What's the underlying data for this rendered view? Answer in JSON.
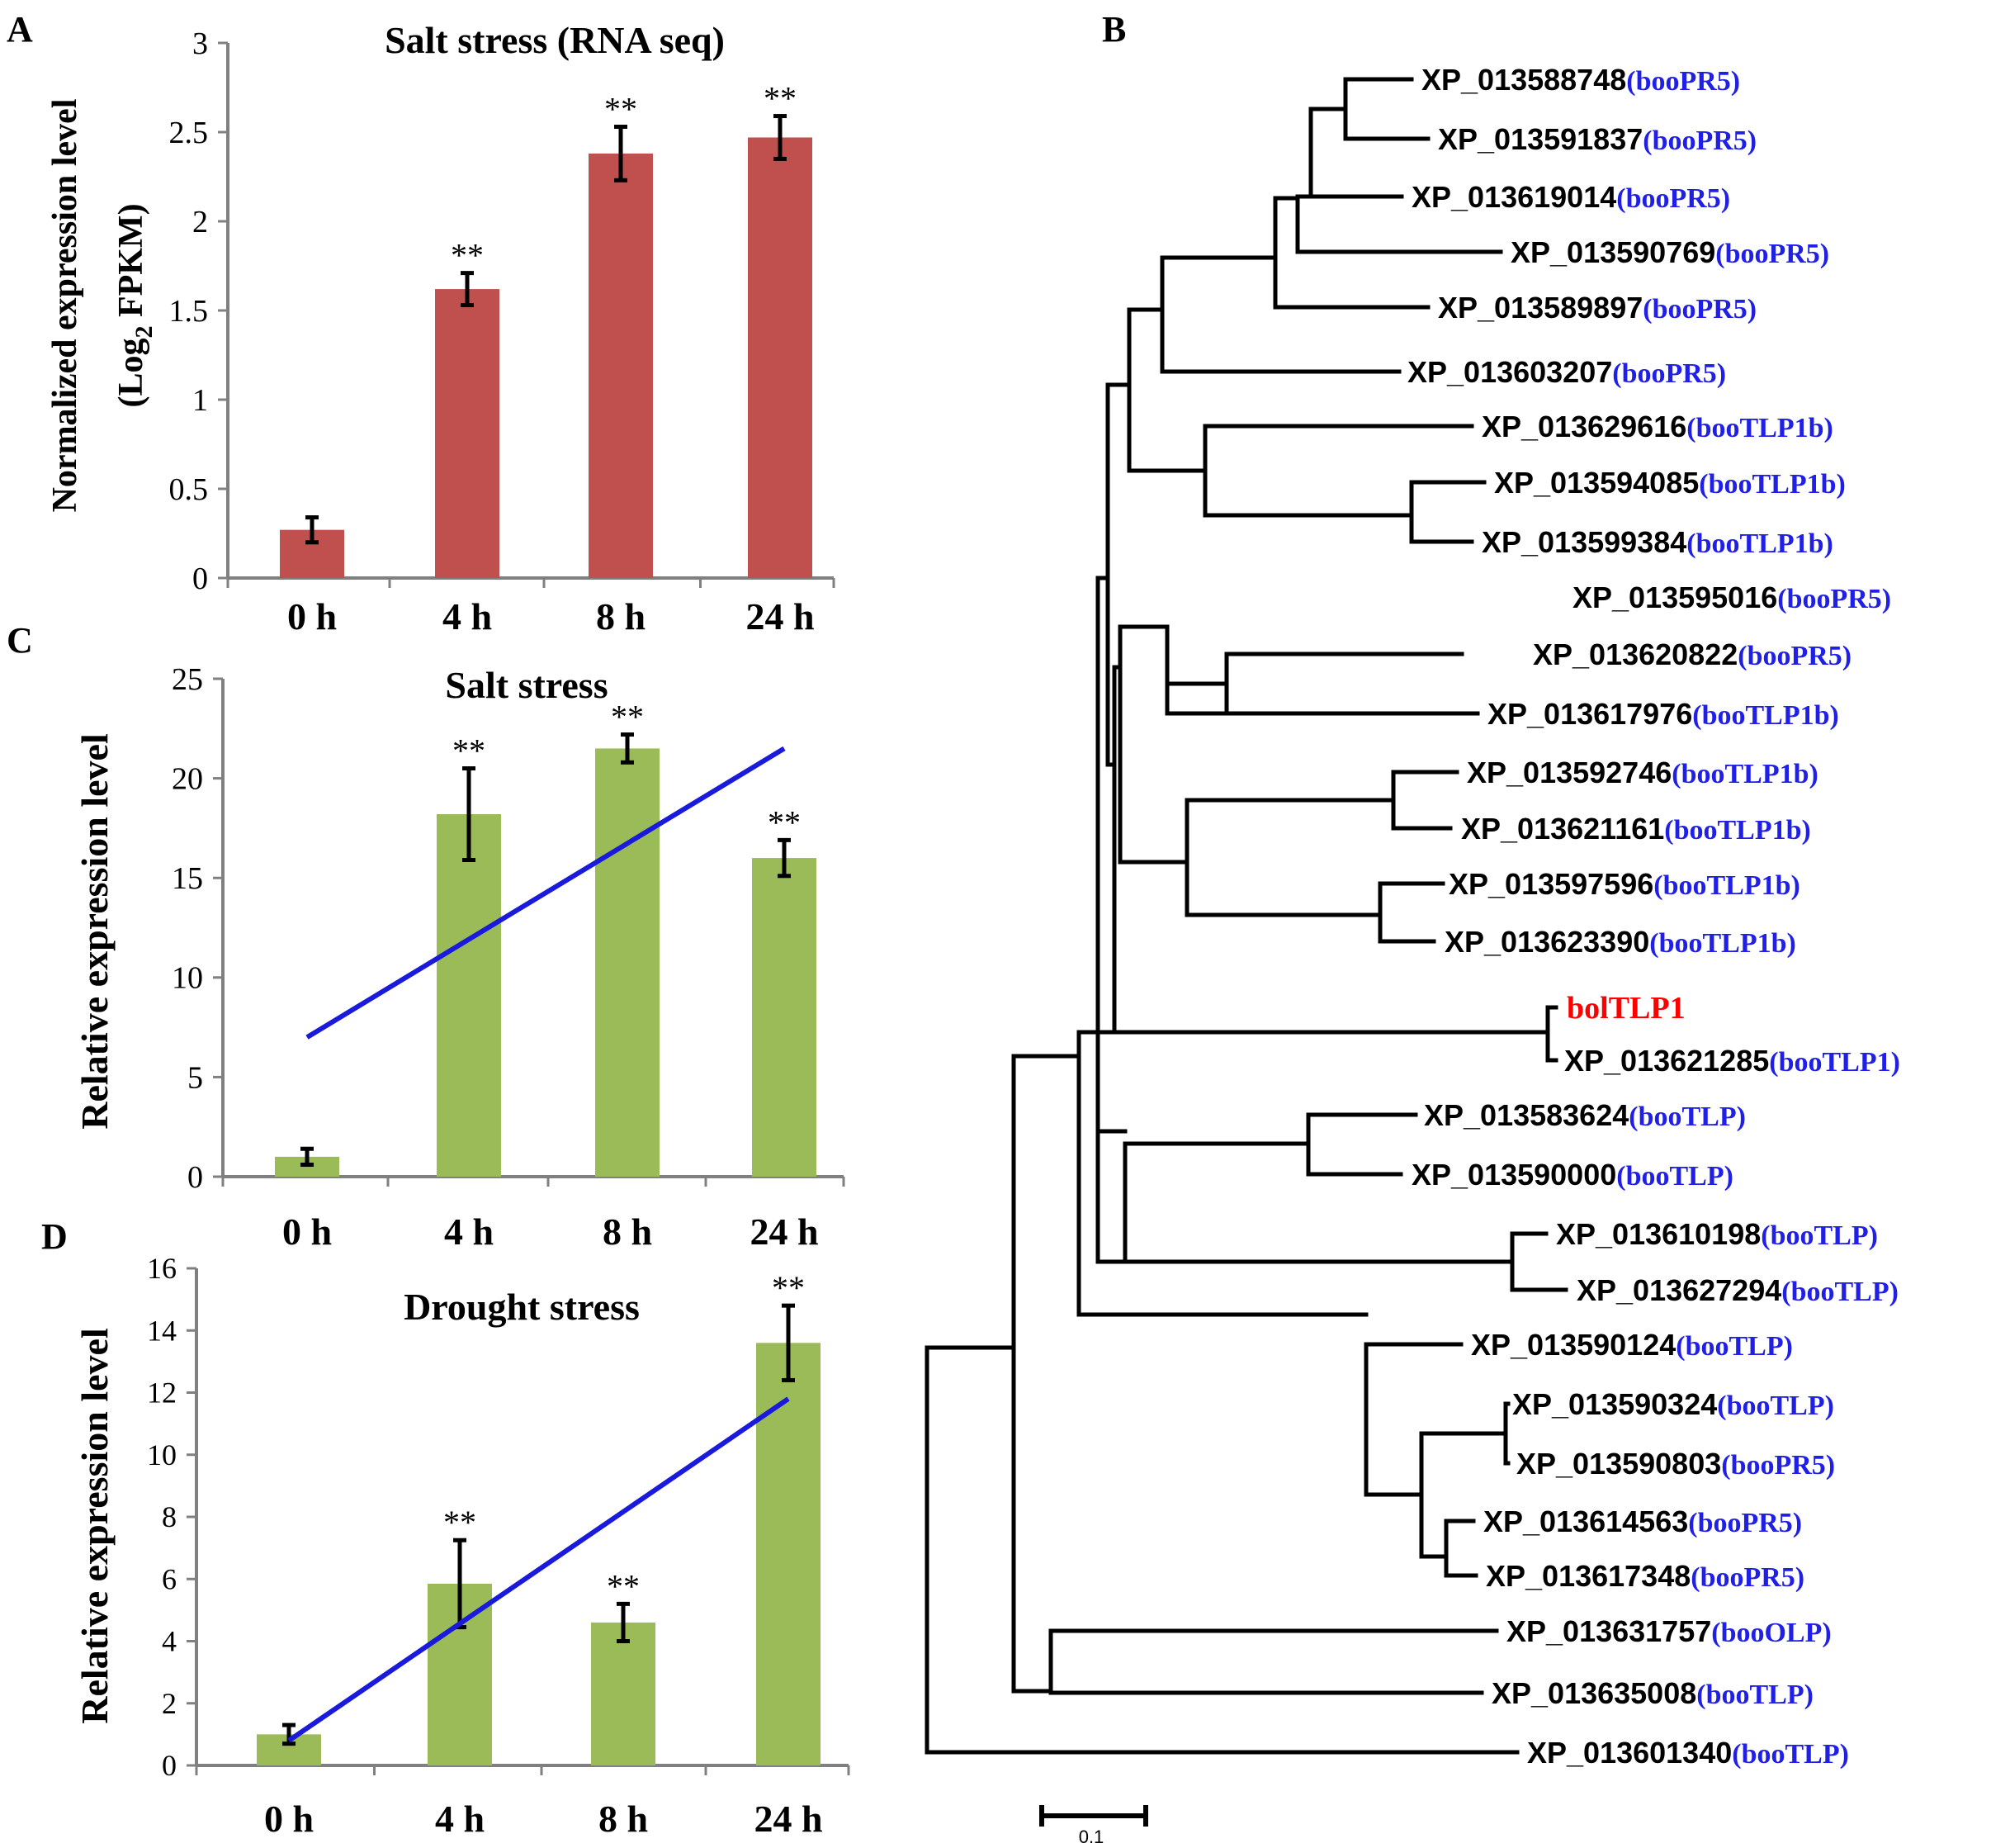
{
  "colors": {
    "bar_red": "#c0504d",
    "bar_green": "#9bbb59",
    "trend_blue": "#1a1adc",
    "axis": "#808080",
    "text": "#000000",
    "tag_blue": "#1f1fe6",
    "highlight_red": "#ff0000"
  },
  "chart_data": [
    {
      "panel": "A",
      "type": "bar",
      "title": "Salt stress (RNA seq)",
      "ylabel_line1": "Normalized expression level",
      "ylabel_line2_pre": "(Log",
      "ylabel_line2_sub": "2",
      "ylabel_line2_post": " FPKM)",
      "categories": [
        "0 h",
        "4 h",
        "8 h",
        "24 h"
      ],
      "values": [
        0.27,
        1.62,
        2.38,
        2.47
      ],
      "errors": [
        0.07,
        0.09,
        0.15,
        0.12
      ],
      "significance": [
        "",
        "**",
        "**",
        "**"
      ],
      "ylim": [
        0,
        3
      ],
      "yticks": [
        0,
        0.5,
        1,
        1.5,
        2,
        2.5,
        3
      ],
      "ytick_labels": [
        "0",
        "0.5",
        "1",
        "1.5",
        "2",
        "2.5",
        "3"
      ],
      "trendline": false
    },
    {
      "panel": "C",
      "type": "bar",
      "title": "Salt stress",
      "ylabel": "Relative expression level",
      "categories": [
        "0 h",
        "4 h",
        "8 h",
        "24 h"
      ],
      "values": [
        1.0,
        18.2,
        21.5,
        16.0
      ],
      "errors": [
        0.4,
        2.3,
        0.7,
        0.9
      ],
      "significance": [
        "",
        "**",
        "**",
        "**"
      ],
      "ylim": [
        0,
        25
      ],
      "yticks": [
        0,
        5,
        10,
        15,
        20,
        25
      ],
      "ytick_labels": [
        "0",
        "5",
        "10",
        "15",
        "20",
        "25"
      ],
      "trendline": true,
      "trend_from": 7.0,
      "trend_to": 21.5
    },
    {
      "panel": "D",
      "type": "bar",
      "title": "Drought stress",
      "ylabel": "Relative expression level",
      "categories": [
        "0 h",
        "4 h",
        "8 h",
        "24 h"
      ],
      "values": [
        1.0,
        5.85,
        4.6,
        13.6
      ],
      "errors": [
        0.3,
        1.4,
        0.6,
        1.2
      ],
      "significance": [
        "",
        "**",
        "**",
        "**"
      ],
      "ylim": [
        0,
        16
      ],
      "yticks": [
        0,
        2,
        4,
        6,
        8,
        10,
        12,
        14,
        16
      ],
      "ytick_labels": [
        "0",
        "2",
        "4",
        "6",
        "8",
        "10",
        "12",
        "14",
        "16"
      ],
      "trendline": true,
      "trend_from": 0.8,
      "trend_to": 11.8
    }
  ],
  "tree": {
    "panel": "B",
    "scale_label": "0.1",
    "leaves": [
      {
        "id": "XP_013588748",
        "tag": "(booPR5)"
      },
      {
        "id": "XP_013591837",
        "tag": "(booPR5)"
      },
      {
        "id": "XP_013619014",
        "tag": "(booPR5)"
      },
      {
        "id": "XP_013590769",
        "tag": "(booPR5)"
      },
      {
        "id": "XP_013589897",
        "tag": "(booPR5)"
      },
      {
        "id": "XP_013603207",
        "tag": "(booPR5)"
      },
      {
        "id": "XP_013629616",
        "tag": "(booTLP1b)"
      },
      {
        "id": "XP_013594085",
        "tag": "(booTLP1b)"
      },
      {
        "id": "XP_013599384",
        "tag": "(booTLP1b)"
      },
      {
        "id": "XP_013595016",
        "tag": "(booPR5)"
      },
      {
        "id": "XP_013620822",
        "tag": "(booPR5)"
      },
      {
        "id": "XP_013617976",
        "tag": "(booTLP1b)"
      },
      {
        "id": "XP_013592746",
        "tag": "(booTLP1b)"
      },
      {
        "id": "XP_013621161",
        "tag": "(booTLP1b)"
      },
      {
        "id": "XP_013597596",
        "tag": "(booTLP1b)"
      },
      {
        "id": "XP_013623390",
        "tag": "(booTLP1b)"
      },
      {
        "id": "bolTLP1",
        "tag": ""
      },
      {
        "id": "XP_013621285",
        "tag": "(booTLP1)"
      },
      {
        "id": "XP_013583624",
        "tag": "(booTLP)"
      },
      {
        "id": "XP_013590000",
        "tag": "(booTLP)"
      },
      {
        "id": "XP_013610198",
        "tag": "(booTLP)"
      },
      {
        "id": "XP_013627294",
        "tag": "(booTLP)"
      },
      {
        "id": "XP_013590124",
        "tag": "(booTLP)"
      },
      {
        "id": "XP_013590324",
        "tag": "(booTLP)"
      },
      {
        "id": "XP_013590803",
        "tag": "(booPR5)"
      },
      {
        "id": "XP_013614563",
        "tag": "(booPR5)"
      },
      {
        "id": "XP_013617348",
        "tag": "(booPR5)"
      },
      {
        "id": "XP_013631757",
        "tag": "(booOLP)"
      },
      {
        "id": "XP_013635008",
        "tag": "(booTLP)"
      },
      {
        "id": "XP_013601340",
        "tag": "(booTLP)"
      }
    ]
  }
}
